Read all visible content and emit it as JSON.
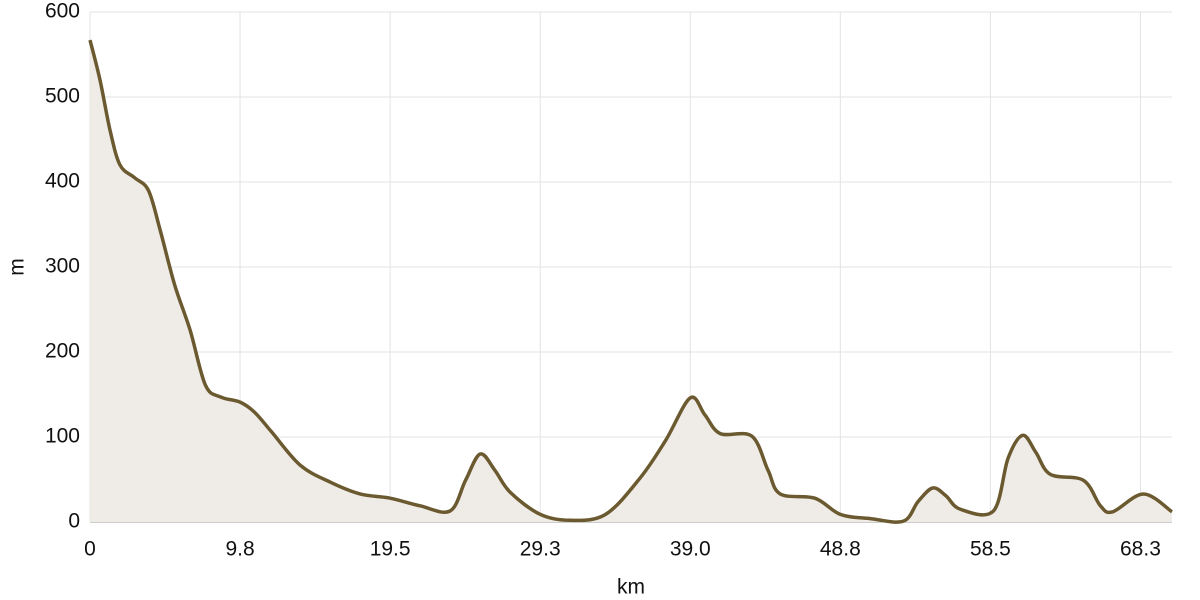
{
  "chart_data": {
    "type": "area",
    "x_label": "km",
    "y_label": "m",
    "x": [
      0,
      0.65,
      1.3,
      1.95,
      2.9,
      3.8,
      4.55,
      5.5,
      6.5,
      7.5,
      8.5,
      9.75,
      10.7,
      11.8,
      13.65,
      15.6,
      17.55,
      19.5,
      21.45,
      23.4,
      24.4,
      25.35,
      26.3,
      27.3,
      29.25,
      31.2,
      33.5,
      35.75,
      37.4,
      39,
      39.95,
      40.95,
      43,
      44.05,
      44.85,
      47.1,
      48.75,
      50.7,
      52.85,
      53.8,
      54.75,
      55.6,
      56.55,
      58.7,
      59.65,
      60.6,
      61.45,
      62.4,
      64.55,
      65.65,
      66.45,
      68.45,
      70.3
    ],
    "series": [
      {
        "color": "#6b5a30",
        "fill": "#efebe7",
        "values": [
          567,
          520,
          461,
          420,
          405,
          390,
          344,
          279,
          226,
          161,
          147,
          141,
          129,
          106,
          67,
          47,
          33,
          28,
          19,
          13,
          49,
          80,
          61,
          35,
          9,
          2,
          9,
          52,
          96,
          146,
          126,
          104,
          101,
          61,
          33,
          28,
          9,
          4,
          1,
          24,
          40,
          31,
          15,
          13,
          75,
          102,
          82,
          56,
          49,
          19,
          12,
          33,
          12
        ]
      }
    ],
    "xlim": [
      0,
      70.3
    ],
    "ylim": [
      0,
      600
    ],
    "xticks": [
      0,
      {
        "value": 9.75,
        "label": "9.8"
      },
      {
        "value": 19.5,
        "label": "19.5"
      },
      {
        "value": 29.25,
        "label": "29.3"
      },
      {
        "value": 39,
        "label": "39.0"
      },
      {
        "value": 48.75,
        "label": "48.8"
      },
      {
        "value": 58.5,
        "label": "58.5"
      },
      {
        "value": 68.25,
        "label": "68.3"
      }
    ],
    "yticks": [
      0,
      100,
      200,
      300,
      400,
      500,
      600
    ],
    "grid": true
  }
}
